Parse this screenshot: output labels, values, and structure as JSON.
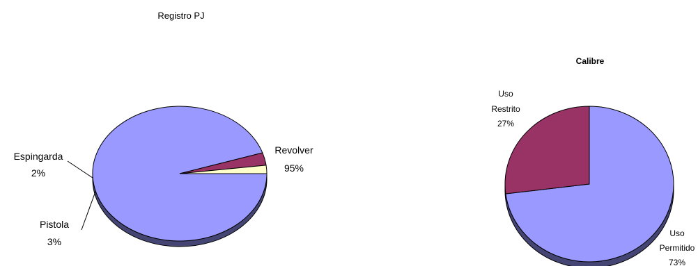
{
  "chart_data": [
    {
      "type": "pie",
      "title": "Registro PJ",
      "labels": [
        "Revolver",
        "Pistola",
        "Espingarda"
      ],
      "values": [
        95,
        3,
        2
      ],
      "value_labels": [
        "95%",
        "3%",
        "2%"
      ],
      "colors": [
        "#9999ff",
        "#993366",
        "#ffffcc"
      ],
      "style": "3d",
      "legend": "none"
    },
    {
      "type": "pie",
      "title": "Calibre",
      "labels": [
        "Uso Permitido",
        "Uso Restrito"
      ],
      "label_lines": [
        [
          "Uso",
          "Permitido"
        ],
        [
          "Uso",
          "Restrito"
        ]
      ],
      "values": [
        73,
        27
      ],
      "value_labels": [
        "73%",
        "27%"
      ],
      "colors": [
        "#9999ff",
        "#993366"
      ],
      "style": "3d",
      "legend": "none"
    }
  ]
}
